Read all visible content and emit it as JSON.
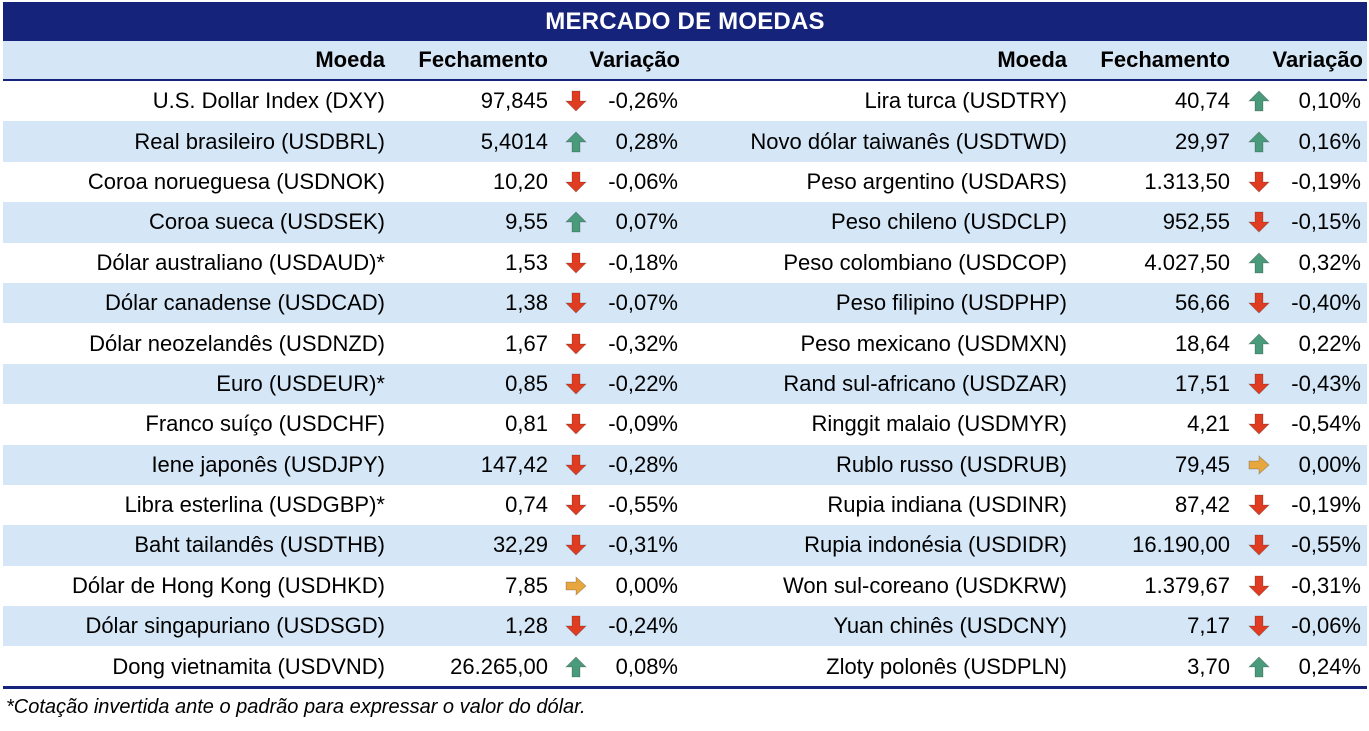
{
  "title": "MERCADO DE MOEDAS",
  "headers": {
    "currency": "Moeda",
    "close": "Fechamento",
    "change": "Variação"
  },
  "colors": {
    "title_bg": "#16237a",
    "row_alt_bg": "#d5e6f6",
    "down": "#e03c22",
    "up": "#4a9a7c",
    "flat": "#e7a63e"
  },
  "left": [
    {
      "name": "U.S. Dollar Index (DXY)",
      "close": "97,845",
      "dir": "down",
      "change": "-0,26%"
    },
    {
      "name": "Real brasileiro (USDBRL)",
      "close": "5,4014",
      "dir": "up",
      "change": "0,28%"
    },
    {
      "name": "Coroa norueguesa (USDNOK)",
      "close": "10,20",
      "dir": "down",
      "change": "-0,06%"
    },
    {
      "name": "Coroa sueca (USDSEK)",
      "close": "9,55",
      "dir": "up",
      "change": "0,07%"
    },
    {
      "name": "Dólar australiano (USDAUD)*",
      "close": "1,53",
      "dir": "down",
      "change": "-0,18%"
    },
    {
      "name": "Dólar canadense (USDCAD)",
      "close": "1,38",
      "dir": "down",
      "change": "-0,07%"
    },
    {
      "name": "Dólar neozelandês (USDNZD)",
      "close": "1,67",
      "dir": "down",
      "change": "-0,32%"
    },
    {
      "name": "Euro (USDEUR)*",
      "close": "0,85",
      "dir": "down",
      "change": "-0,22%"
    },
    {
      "name": "Franco suíço (USDCHF)",
      "close": "0,81",
      "dir": "down",
      "change": "-0,09%"
    },
    {
      "name": "Iene japonês (USDJPY)",
      "close": "147,42",
      "dir": "down",
      "change": "-0,28%"
    },
    {
      "name": "Libra esterlina (USDGBP)*",
      "close": "0,74",
      "dir": "down",
      "change": "-0,55%"
    },
    {
      "name": "Baht tailandês (USDTHB)",
      "close": "32,29",
      "dir": "down",
      "change": "-0,31%"
    },
    {
      "name": "Dólar de Hong Kong (USDHKD)",
      "close": "7,85",
      "dir": "flat",
      "change": "0,00%"
    },
    {
      "name": "Dólar singapuriano (USDSGD)",
      "close": "1,28",
      "dir": "down",
      "change": "-0,24%"
    },
    {
      "name": "Dong vietnamita (USDVND)",
      "close": "26.265,00",
      "dir": "up",
      "change": "0,08%"
    }
  ],
  "right": [
    {
      "name": "Lira turca (USDTRY)",
      "close": "40,74",
      "dir": "up",
      "change": "0,10%"
    },
    {
      "name": "Novo dólar taiwanês (USDTWD)",
      "close": "29,97",
      "dir": "up",
      "change": "0,16%"
    },
    {
      "name": "Peso argentino (USDARS)",
      "close": "1.313,50",
      "dir": "down",
      "change": "-0,19%"
    },
    {
      "name": "Peso chileno (USDCLP)",
      "close": "952,55",
      "dir": "down",
      "change": "-0,15%"
    },
    {
      "name": "Peso colombiano (USDCOP)",
      "close": "4.027,50",
      "dir": "up",
      "change": "0,32%"
    },
    {
      "name": "Peso filipino (USDPHP)",
      "close": "56,66",
      "dir": "down",
      "change": "-0,40%"
    },
    {
      "name": "Peso mexicano (USDMXN)",
      "close": "18,64",
      "dir": "up",
      "change": "0,22%"
    },
    {
      "name": "Rand sul-africano (USDZAR)",
      "close": "17,51",
      "dir": "down",
      "change": "-0,43%"
    },
    {
      "name": "Ringgit malaio (USDMYR)",
      "close": "4,21",
      "dir": "down",
      "change": "-0,54%"
    },
    {
      "name": "Rublo russo (USDRUB)",
      "close": "79,45",
      "dir": "flat",
      "change": "0,00%"
    },
    {
      "name": "Rupia indiana (USDINR)",
      "close": "87,42",
      "dir": "down",
      "change": "-0,19%"
    },
    {
      "name": "Rupia indonésia (USDIDR)",
      "close": "16.190,00",
      "dir": "down",
      "change": "-0,55%"
    },
    {
      "name": "Won sul-coreano (USDKRW)",
      "close": "1.379,67",
      "dir": "down",
      "change": "-0,31%"
    },
    {
      "name": "Yuan chinês (USDCNY)",
      "close": "7,17",
      "dir": "down",
      "change": "-0,06%"
    },
    {
      "name": "Zloty polonês (USDPLN)",
      "close": "3,70",
      "dir": "up",
      "change": "0,24%"
    }
  ],
  "footnote": "*Cotação invertida ante o padrão para expressar o valor do dólar."
}
